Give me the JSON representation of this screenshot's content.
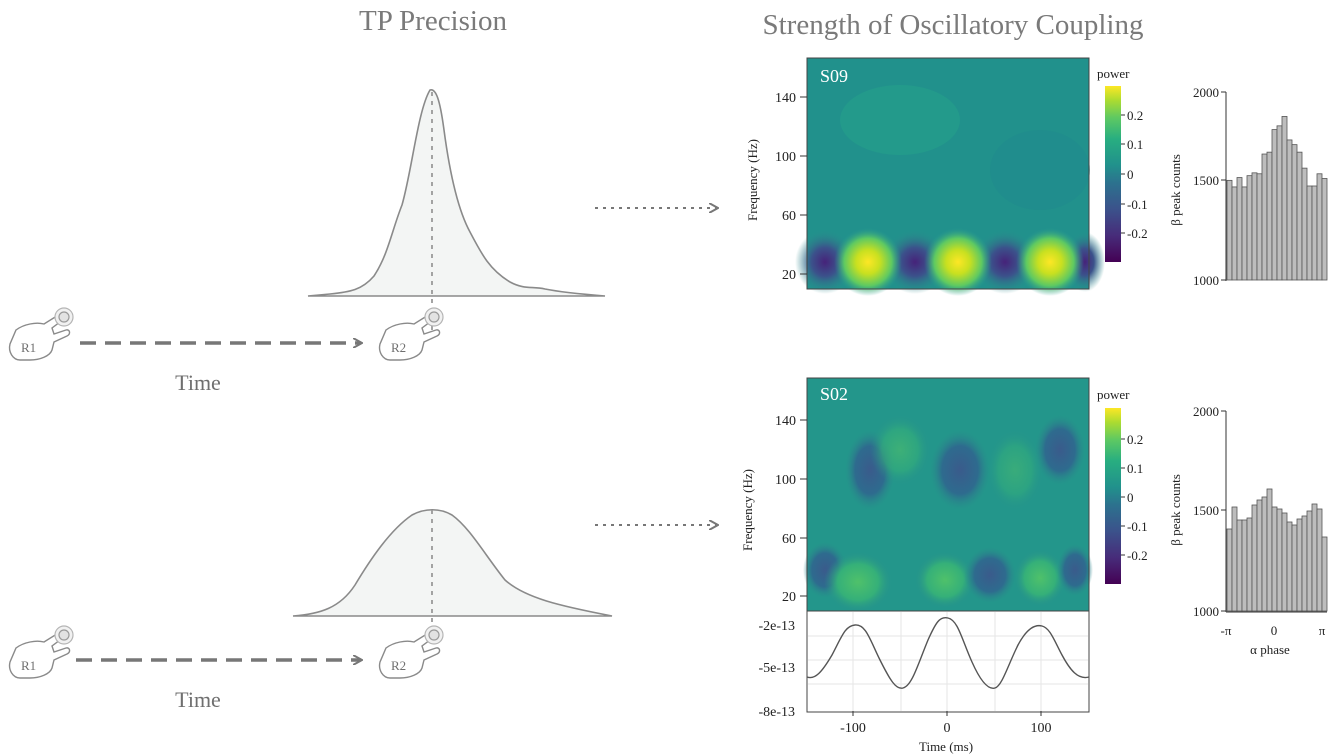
{
  "titles": {
    "left": "TP Precision",
    "right": "Strength of Oscillatory Coupling"
  },
  "rows": [
    {
      "subject": "S09",
      "time_label": "Time",
      "r1": "R1",
      "r2": "R2",
      "heatmap": {
        "yticks": [
          "140",
          "100",
          "60",
          "20"
        ],
        "ylabel": "Frequency (Hz)"
      },
      "colorbar": {
        "title": "power",
        "ticks": [
          "0.2",
          "0.1",
          "0",
          "-0.1",
          "-0.2"
        ]
      },
      "hist": {
        "yticks": [
          "2000",
          "1500",
          "1000"
        ],
        "ylabel": "β peak counts"
      }
    },
    {
      "subject": "S02",
      "time_label": "Time",
      "r1": "R1",
      "r2": "R2",
      "heatmap": {
        "yticks": [
          "140",
          "100",
          "60",
          "20"
        ],
        "ylabel": "Frequency (Hz)"
      },
      "colorbar": {
        "title": "power",
        "ticks": [
          "0.2",
          "0.1",
          "0",
          "-0.1",
          "-0.2"
        ]
      },
      "hist": {
        "yticks": [
          "2000",
          "1500",
          "1000"
        ],
        "ylabel": "β peak counts",
        "xticks": [
          "-π",
          "0",
          "π"
        ],
        "xlabel": "α phase"
      }
    }
  ],
  "waveform": {
    "yticks": [
      "-2e-13",
      "-5e-13",
      "-8e-13"
    ],
    "xticks": [
      "-100",
      "0",
      "100"
    ],
    "xlabel": "Time (ms)"
  },
  "chart_data": [
    {
      "type": "bar",
      "title": "S09",
      "ylabel": "β peak counts",
      "ylim": [
        1000,
        2000
      ],
      "values": [
        1530,
        1495,
        1545,
        1495,
        1555,
        1570,
        1565,
        1670,
        1680,
        1800,
        1820,
        1870,
        1745,
        1720,
        1680,
        1595,
        1500,
        1500,
        1565,
        1540
      ]
    },
    {
      "type": "bar",
      "title": "S02",
      "ylabel": "β peak counts",
      "xlabel": "α phase",
      "ylim": [
        1000,
        2000
      ],
      "xtick_labels": [
        "-π",
        "0",
        "π"
      ],
      "values": [
        1410,
        1520,
        1455,
        1455,
        1465,
        1530,
        1555,
        1570,
        1610,
        1520,
        1510,
        1490,
        1445,
        1430,
        1460,
        1475,
        1500,
        1535,
        1510,
        1370
      ]
    },
    {
      "type": "line",
      "xlabel": "Time (ms)",
      "xlim": [
        -150,
        150
      ],
      "ylim": [
        -8e-13,
        -1.5e-13
      ],
      "x": [
        -150,
        -140,
        -130,
        -120,
        -110,
        -100,
        -90,
        -80,
        -70,
        -60,
        -50,
        -40,
        -30,
        -20,
        -10,
        0,
        10,
        20,
        30,
        40,
        50,
        -0.0
      ],
      "note": ""
    }
  ]
}
